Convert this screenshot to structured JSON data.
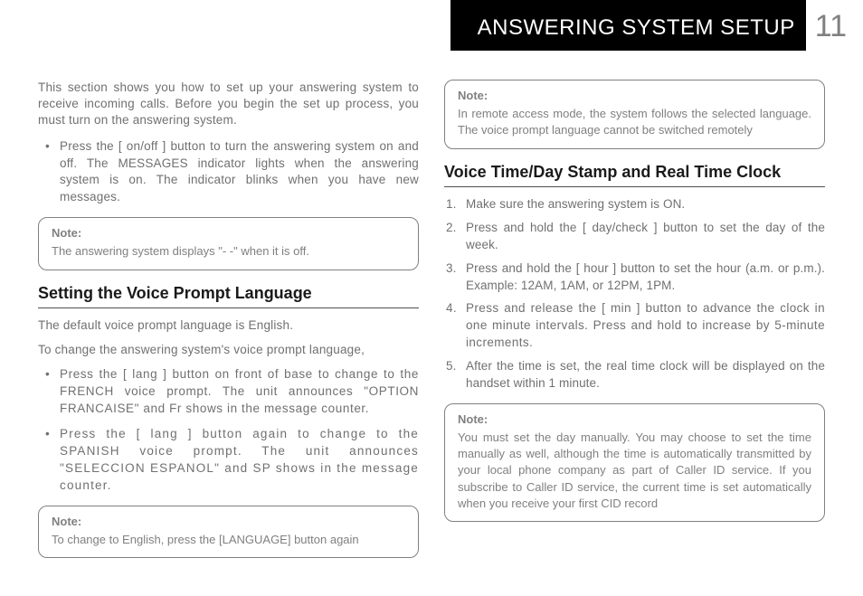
{
  "header": {
    "title": "ANSWERING SYSTEM SETUP",
    "page_number": "11"
  },
  "left": {
    "intro": "This section shows you how to set up your answering system to receive incoming calls. Before you begin the set up process, you must turn on the answering system.",
    "bullet1": "Press the [ on/off ] button to turn the answering system on and off. The MESSAGES indicator lights when the answering system is on. The indicator blinks when you have new messages.",
    "note1_label": "Note:",
    "note1_body": "The answering system displays \"- -\" when it is off.",
    "section1": "Setting the Voice Prompt Language",
    "p1": "The default voice prompt language is English.",
    "p2": "To change the answering system's voice prompt language,",
    "bullet2": "Press the [ lang ] button on front of base to change to the FRENCH voice prompt. The unit announces \"OPTION FRANCAISE\" and Fr shows in the message counter.",
    "bullet3": "Press the [ lang ] button again to change to the SPANISH voice prompt. The unit announces \"SELECCION ESPANOL\" and SP shows in the message counter.",
    "note2_label": "Note:",
    "note2_body": "To change to English, press the [LANGUAGE] button again"
  },
  "right": {
    "note3_label": "Note:",
    "note3_body": "In remote access mode, the system follows the selected language. The voice prompt language cannot be switched remotely",
    "section2": "Voice Time/Day Stamp and Real Time Clock",
    "step1": "Make sure the answering system is ON.",
    "step2": "Press and hold the [ day/check ] button to set the day of the week.",
    "step3": "Press and hold the [ hour ] button to set the hour (a.m. or p.m.). Example: 12AM, 1AM, or 12PM, 1PM.",
    "step4": "Press and release the [ min ] button to advance the clock in one minute intervals. Press and hold to increase by 5-minute increments.",
    "step5": "After the time is set, the real time clock will be displayed on the handset within 1 minute.",
    "note4_label": "Note:",
    "note4_body": "You must set the day manually. You may choose to set the time manually as well, although the time is automatically transmitted by your local phone company as part of Caller ID service. If you subscribe to Caller ID service, the current time is set automatically when you receive your first CID record"
  },
  "colors": {
    "header_bg": "#000000",
    "header_text": "#ffffff",
    "page_num": "#808080",
    "body_text": "#707070",
    "heading_text": "#1a1a1a",
    "border": "#808080"
  }
}
